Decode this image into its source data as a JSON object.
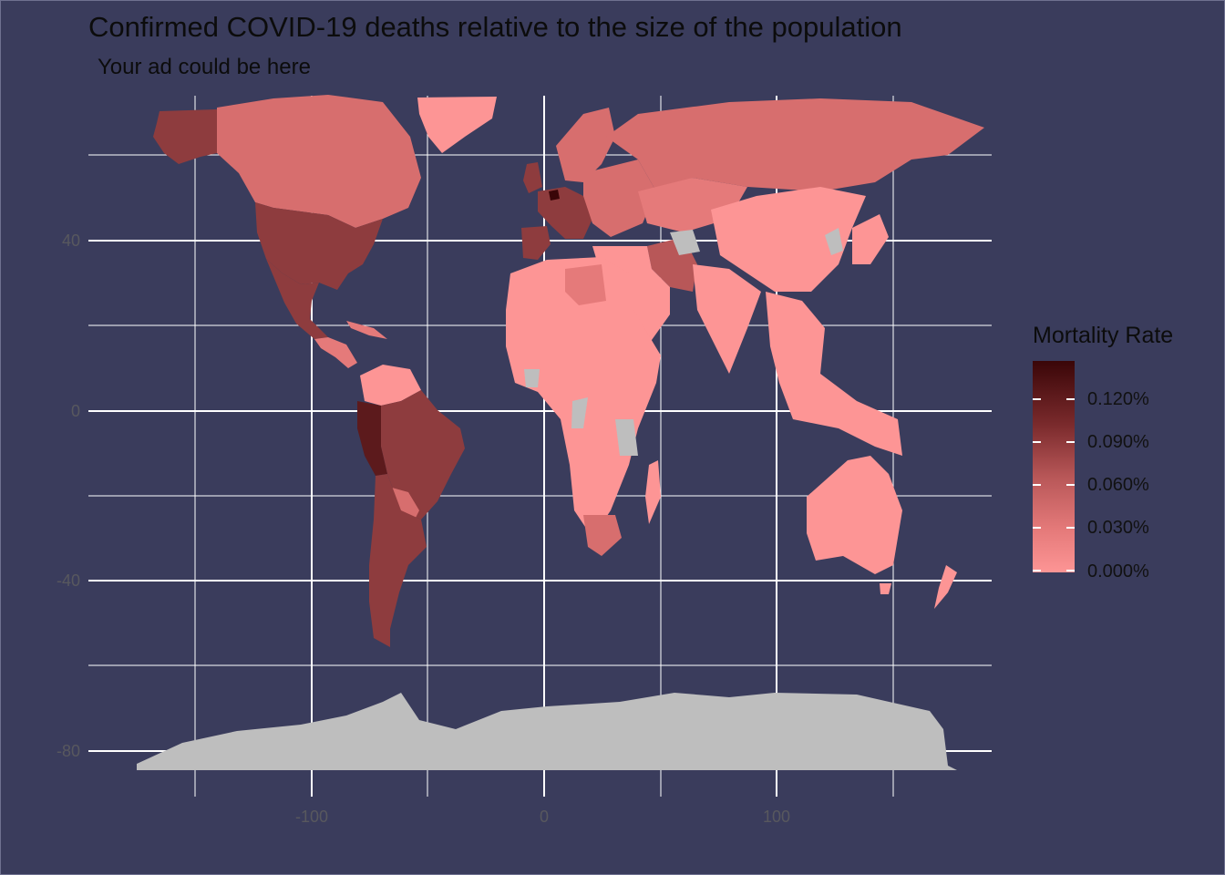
{
  "title": "Confirmed COVID-19 deaths relative to the size of the population",
  "subtitle": "Your ad could be here",
  "colors": {
    "background": "#3a3c5c",
    "grid": "#ffffff",
    "low": "#fd9595",
    "high": "#3a0608",
    "no_data": "#bebebe"
  },
  "axes": {
    "x_ticks": [
      "-100",
      "0",
      "100"
    ],
    "y_ticks": [
      "40",
      "0",
      "-40",
      "-80"
    ]
  },
  "legend": {
    "title": "Mortality Rate",
    "ticks": [
      "0.120%",
      "0.090%",
      "0.060%",
      "0.030%",
      "0.000%"
    ]
  },
  "chart_data": {
    "type": "heatmap",
    "title": "Confirmed COVID-19 deaths relative to the size of the population",
    "subtitle": "Your ad could be here",
    "x_range": [
      -180,
      190
    ],
    "y_range": [
      -90,
      85
    ],
    "x_ticks": [
      -100,
      0,
      100
    ],
    "y_ticks": [
      40,
      0,
      -40,
      -80
    ],
    "legend": {
      "title": "Mortality Rate",
      "ticks": [
        0.0012,
        0.0009,
        0.0006,
        0.0003,
        0.0
      ],
      "range": [
        0.0,
        0.00135
      ]
    },
    "regions": [
      {
        "region": "Alaska",
        "rate": 0.0007
      },
      {
        "region": "Canada",
        "rate": 0.0004
      },
      {
        "region": "United States",
        "rate": 0.0008
      },
      {
        "region": "Mexico",
        "rate": 0.0008
      },
      {
        "region": "Central America",
        "rate": 0.0003
      },
      {
        "region": "Greenland",
        "rate": 0.0
      },
      {
        "region": "Colombia/Venezuela",
        "rate": 0.0001
      },
      {
        "region": "Peru",
        "rate": 0.0012
      },
      {
        "region": "Brazil",
        "rate": 0.0009
      },
      {
        "region": "Bolivia",
        "rate": 0.0004
      },
      {
        "region": "Argentina/Chile",
        "rate": 0.0009
      },
      {
        "region": "Western Europe",
        "rate": 0.001
      },
      {
        "region": "Belgium",
        "rate": 0.00135
      },
      {
        "region": "Spain",
        "rate": 0.0011
      },
      {
        "region": "Eastern Europe",
        "rate": 0.0004
      },
      {
        "region": "Russia",
        "rate": 0.0004
      },
      {
        "region": "Iran",
        "rate": 0.0006
      },
      {
        "region": "Africa",
        "rate": 5e-05
      },
      {
        "region": "South Africa",
        "rate": 0.0004
      },
      {
        "region": "India",
        "rate": 0.0001
      },
      {
        "region": "China",
        "rate": 0.0
      },
      {
        "region": "Southeast Asia",
        "rate": 0.0001
      },
      {
        "region": "Australia",
        "rate": 0.0
      },
      {
        "region": "New Zealand",
        "rate": 0.0
      },
      {
        "region": "Antarctica",
        "rate": null
      }
    ]
  }
}
